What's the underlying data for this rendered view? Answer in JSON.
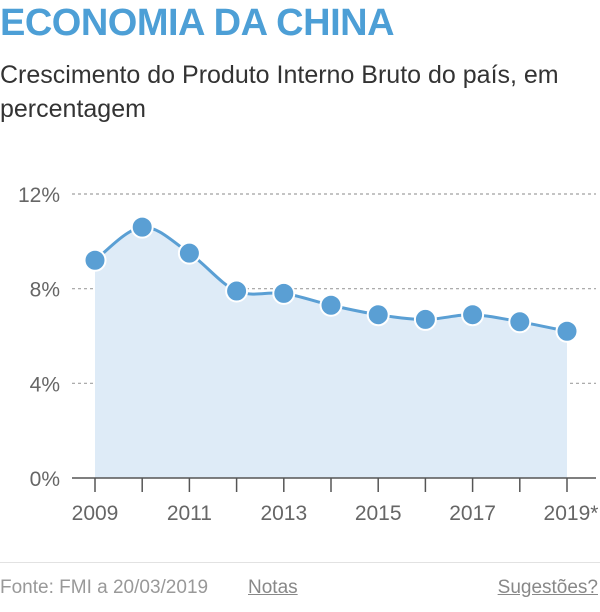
{
  "header": {
    "title": "ECONOMIA DA CHINA",
    "subtitle": "Crescimento do Produto Interno Bruto do país, em percentagem"
  },
  "footer": {
    "source": "Fonte: FMI a 20/03/2019",
    "notes_label": "Notas",
    "suggestions_label": "Sugestões?"
  },
  "colors": {
    "accent": "#4d9fd6",
    "line": "#5a9fd4",
    "area": "#deebf7",
    "grid": "#a0a0a0"
  },
  "chart_data": {
    "type": "area",
    "x": [
      2009,
      2010,
      2011,
      2012,
      2013,
      2014,
      2015,
      2016,
      2017,
      2018,
      2019
    ],
    "values": [
      9.2,
      10.6,
      9.5,
      7.9,
      7.8,
      7.3,
      6.9,
      6.7,
      6.9,
      6.6,
      6.2
    ],
    "x_tick_labels": [
      "2009",
      "",
      "2011",
      "",
      "2013",
      "",
      "2015",
      "",
      "2017",
      "",
      "2019*"
    ],
    "y_ticks": [
      0,
      4,
      8,
      12
    ],
    "y_tick_labels": [
      "0%",
      "4%",
      "8%",
      "12%"
    ],
    "ylim": [
      0,
      12
    ],
    "grid": true,
    "smooth": true,
    "markers": true
  }
}
